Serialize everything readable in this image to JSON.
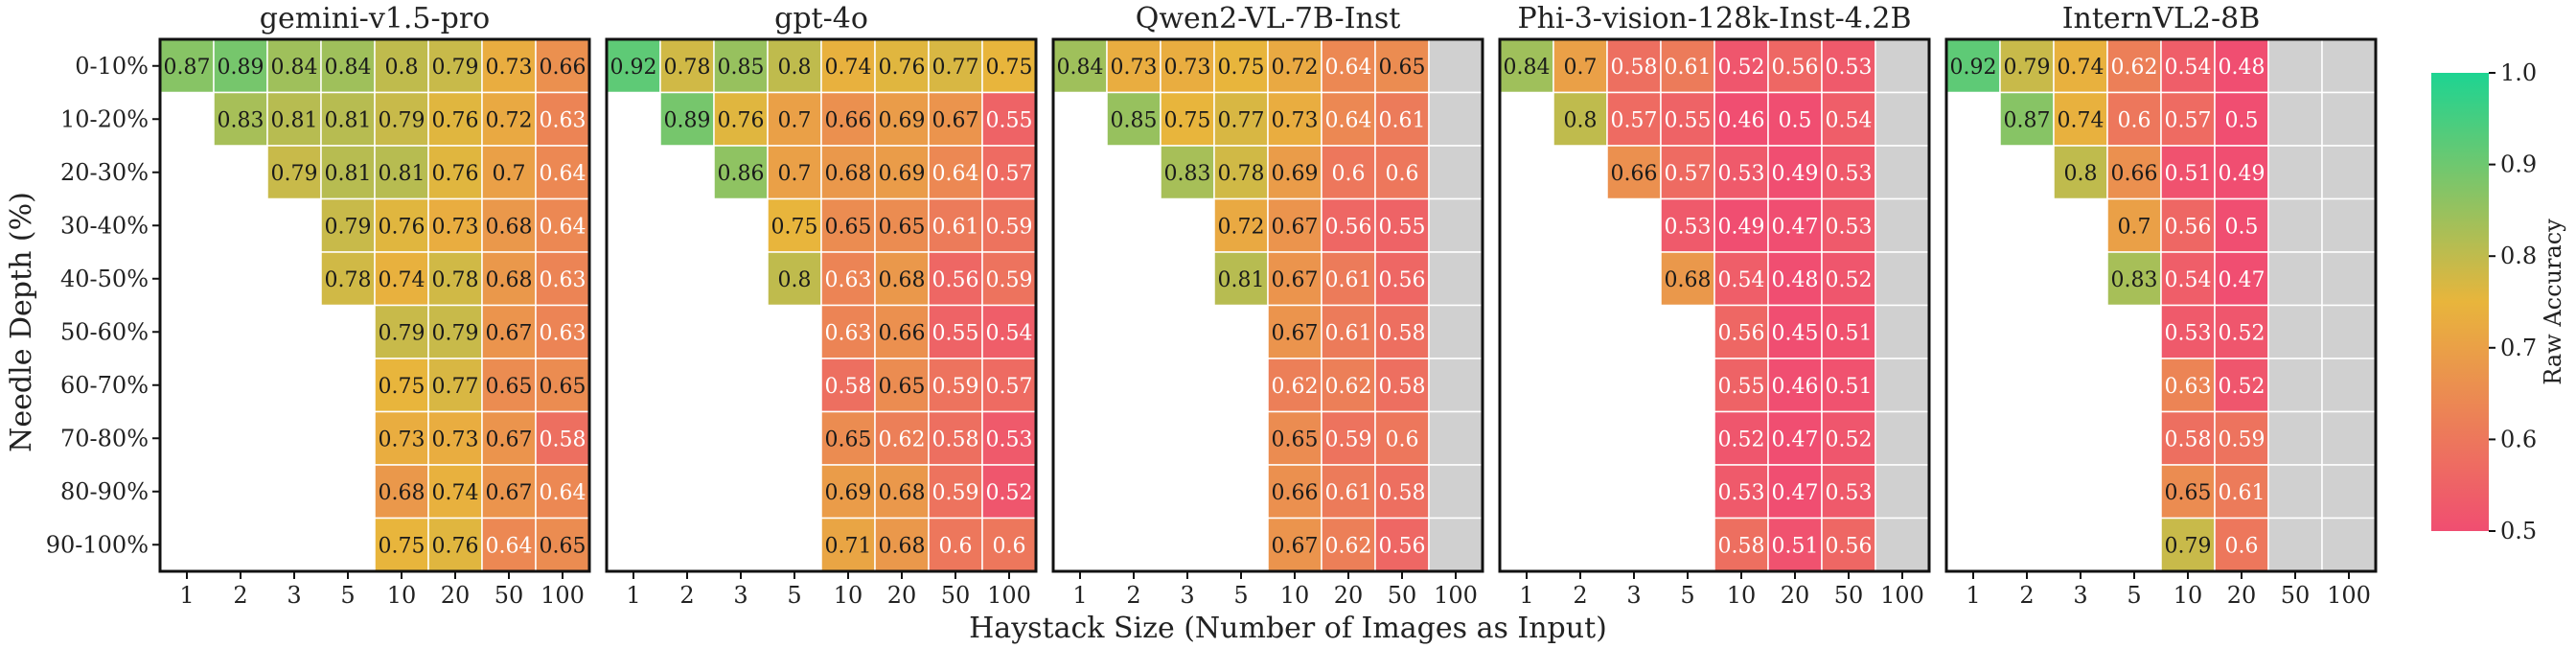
{
  "figure": {
    "xlabel": "Haystack Size (Number of Images as Input)",
    "ylabel": "Needle Depth (%)",
    "colorbar": {
      "label": "Raw Accuracy",
      "ticks": [
        "1.0",
        "0.9",
        "0.8",
        "0.7",
        "0.6",
        "0.5"
      ],
      "range": [
        0.5,
        1.0
      ],
      "colors": [
        "#f04e71",
        "#e8b53c",
        "#1dd492"
      ]
    },
    "na_color": "#d0d0d0"
  },
  "chart_data": [
    {
      "type": "heatmap",
      "title": "gemini-v1.5-pro",
      "x": [
        "1",
        "2",
        "3",
        "5",
        "10",
        "20",
        "50",
        "100"
      ],
      "y": [
        "0-10%",
        "10-20%",
        "20-30%",
        "30-40%",
        "40-50%",
        "50-60%",
        "60-70%",
        "70-80%",
        "80-90%",
        "90-100%"
      ],
      "values": [
        [
          0.87,
          0.89,
          0.84,
          0.84,
          0.8,
          0.79,
          0.73,
          0.66
        ],
        [
          null,
          0.83,
          0.81,
          0.81,
          0.79,
          0.76,
          0.72,
          0.63
        ],
        [
          null,
          null,
          0.79,
          0.81,
          0.81,
          0.76,
          0.7,
          0.64
        ],
        [
          null,
          null,
          null,
          0.79,
          0.76,
          0.73,
          0.68,
          0.64
        ],
        [
          null,
          null,
          null,
          0.78,
          0.74,
          0.78,
          0.68,
          0.63
        ],
        [
          null,
          null,
          null,
          null,
          0.79,
          0.79,
          0.67,
          0.63
        ],
        [
          null,
          null,
          null,
          null,
          0.75,
          0.77,
          0.65,
          0.65
        ],
        [
          null,
          null,
          null,
          null,
          0.73,
          0.73,
          0.67,
          0.58
        ],
        [
          null,
          null,
          null,
          null,
          0.68,
          0.74,
          0.67,
          0.64
        ],
        [
          null,
          null,
          null,
          null,
          0.75,
          0.76,
          0.64,
          0.65
        ]
      ],
      "na_columns": []
    },
    {
      "type": "heatmap",
      "title": "gpt-4o",
      "x": [
        "1",
        "2",
        "3",
        "5",
        "10",
        "20",
        "50",
        "100"
      ],
      "y": [
        "0-10%",
        "10-20%",
        "20-30%",
        "30-40%",
        "40-50%",
        "50-60%",
        "60-70%",
        "70-80%",
        "80-90%",
        "90-100%"
      ],
      "values": [
        [
          0.92,
          0.78,
          0.85,
          0.8,
          0.74,
          0.76,
          0.77,
          0.75
        ],
        [
          null,
          0.89,
          0.76,
          0.7,
          0.66,
          0.69,
          0.67,
          0.55
        ],
        [
          null,
          null,
          0.86,
          0.7,
          0.68,
          0.69,
          0.64,
          0.57
        ],
        [
          null,
          null,
          null,
          0.75,
          0.65,
          0.65,
          0.61,
          0.59
        ],
        [
          null,
          null,
          null,
          0.8,
          0.63,
          0.68,
          0.56,
          0.59
        ],
        [
          null,
          null,
          null,
          null,
          0.63,
          0.66,
          0.55,
          0.54
        ],
        [
          null,
          null,
          null,
          null,
          0.58,
          0.65,
          0.59,
          0.57
        ],
        [
          null,
          null,
          null,
          null,
          0.65,
          0.62,
          0.58,
          0.53
        ],
        [
          null,
          null,
          null,
          null,
          0.69,
          0.68,
          0.59,
          0.52
        ],
        [
          null,
          null,
          null,
          null,
          0.71,
          0.68,
          0.6,
          0.6
        ]
      ],
      "na_columns": []
    },
    {
      "type": "heatmap",
      "title": "Qwen2-VL-7B-Inst",
      "x": [
        "1",
        "2",
        "3",
        "5",
        "10",
        "20",
        "50",
        "100"
      ],
      "y": [
        "0-10%",
        "10-20%",
        "20-30%",
        "30-40%",
        "40-50%",
        "50-60%",
        "60-70%",
        "70-80%",
        "80-90%",
        "90-100%"
      ],
      "values": [
        [
          0.84,
          0.73,
          0.73,
          0.75,
          0.72,
          0.64,
          0.65,
          null
        ],
        [
          null,
          0.85,
          0.75,
          0.77,
          0.73,
          0.64,
          0.61,
          null
        ],
        [
          null,
          null,
          0.83,
          0.78,
          0.69,
          0.6,
          0.6,
          null
        ],
        [
          null,
          null,
          null,
          0.72,
          0.67,
          0.56,
          0.55,
          null
        ],
        [
          null,
          null,
          null,
          0.81,
          0.67,
          0.61,
          0.56,
          null
        ],
        [
          null,
          null,
          null,
          null,
          0.67,
          0.61,
          0.58,
          null
        ],
        [
          null,
          null,
          null,
          null,
          0.62,
          0.62,
          0.58,
          null
        ],
        [
          null,
          null,
          null,
          null,
          0.65,
          0.59,
          0.6,
          null
        ],
        [
          null,
          null,
          null,
          null,
          0.66,
          0.61,
          0.58,
          null
        ],
        [
          null,
          null,
          null,
          null,
          0.67,
          0.62,
          0.56,
          null
        ]
      ],
      "na_columns": [
        7
      ]
    },
    {
      "type": "heatmap",
      "title": "Phi-3-vision-128k-Inst-4.2B",
      "x": [
        "1",
        "2",
        "3",
        "5",
        "10",
        "20",
        "50",
        "100"
      ],
      "y": [
        "0-10%",
        "10-20%",
        "20-30%",
        "30-40%",
        "40-50%",
        "50-60%",
        "60-70%",
        "70-80%",
        "80-90%",
        "90-100%"
      ],
      "values": [
        [
          0.84,
          0.7,
          0.58,
          0.61,
          0.52,
          0.56,
          0.53,
          null
        ],
        [
          null,
          0.8,
          0.57,
          0.55,
          0.46,
          0.5,
          0.54,
          null
        ],
        [
          null,
          null,
          0.66,
          0.57,
          0.53,
          0.49,
          0.53,
          null
        ],
        [
          null,
          null,
          null,
          0.53,
          0.49,
          0.47,
          0.53,
          null
        ],
        [
          null,
          null,
          null,
          0.68,
          0.54,
          0.48,
          0.52,
          null
        ],
        [
          null,
          null,
          null,
          null,
          0.56,
          0.45,
          0.51,
          null
        ],
        [
          null,
          null,
          null,
          null,
          0.55,
          0.46,
          0.51,
          null
        ],
        [
          null,
          null,
          null,
          null,
          0.52,
          0.47,
          0.52,
          null
        ],
        [
          null,
          null,
          null,
          null,
          0.53,
          0.47,
          0.53,
          null
        ],
        [
          null,
          null,
          null,
          null,
          0.58,
          0.51,
          0.56,
          null
        ]
      ],
      "na_columns": [
        7
      ]
    },
    {
      "type": "heatmap",
      "title": "InternVL2-8B",
      "x": [
        "1",
        "2",
        "3",
        "5",
        "10",
        "20",
        "50",
        "100"
      ],
      "y": [
        "0-10%",
        "10-20%",
        "20-30%",
        "30-40%",
        "40-50%",
        "50-60%",
        "60-70%",
        "70-80%",
        "80-90%",
        "90-100%"
      ],
      "values": [
        [
          0.92,
          0.79,
          0.74,
          0.62,
          0.54,
          0.48,
          null,
          null
        ],
        [
          null,
          0.87,
          0.74,
          0.6,
          0.57,
          0.5,
          null,
          null
        ],
        [
          null,
          null,
          0.8,
          0.66,
          0.51,
          0.49,
          null,
          null
        ],
        [
          null,
          null,
          null,
          0.7,
          0.56,
          0.5,
          null,
          null
        ],
        [
          null,
          null,
          null,
          0.83,
          0.54,
          0.47,
          null,
          null
        ],
        [
          null,
          null,
          null,
          null,
          0.53,
          0.52,
          null,
          null
        ],
        [
          null,
          null,
          null,
          null,
          0.63,
          0.52,
          null,
          null
        ],
        [
          null,
          null,
          null,
          null,
          0.58,
          0.59,
          null,
          null
        ],
        [
          null,
          null,
          null,
          null,
          0.65,
          0.61,
          null,
          null
        ],
        [
          null,
          null,
          null,
          null,
          0.79,
          0.6,
          null,
          null
        ]
      ],
      "na_columns": [
        6,
        7
      ]
    }
  ]
}
